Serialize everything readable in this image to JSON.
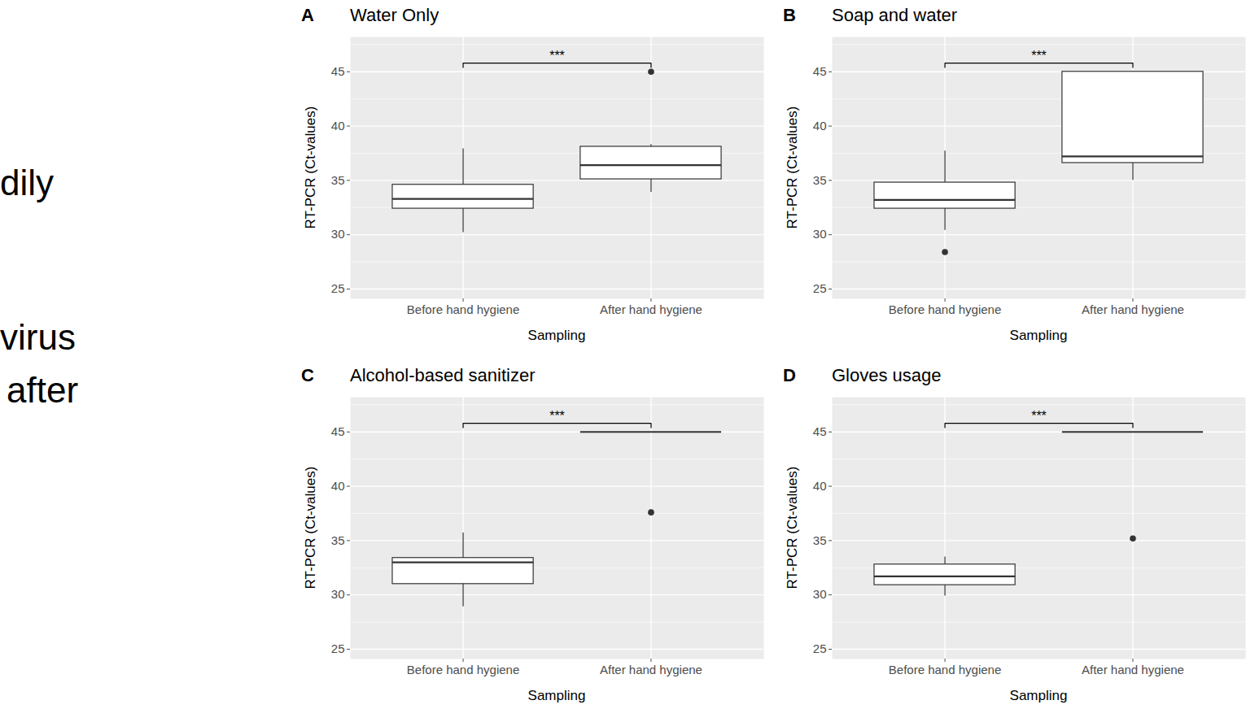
{
  "chart_data": [
    {
      "type": "box",
      "panel": "A",
      "title": "Water Only",
      "x_label": "Sampling",
      "y_label": "RT-PCR (Ct-values)",
      "categories": [
        "Before hand hygiene",
        "After hand hygiene"
      ],
      "boxes": [
        {
          "whisker_low": 30.2,
          "q1": 32.4,
          "median": 33.3,
          "q3": 34.6,
          "whisker_high": 37.9,
          "outliers": []
        },
        {
          "whisker_low": 33.9,
          "q1": 35.1,
          "median": 36.4,
          "q3": 38.1,
          "whisker_high": 38.3,
          "outliers": [
            45
          ]
        }
      ],
      "ylim": [
        24.1,
        48.2
      ],
      "yticks": [
        25,
        30,
        35,
        40,
        45
      ],
      "grid": true,
      "color": "#333333",
      "significance": {
        "from": 0,
        "to": 1,
        "y": 45.8,
        "tip": 45.4,
        "label": "***"
      }
    },
    {
      "type": "box",
      "panel": "B",
      "title": "Soap and water",
      "x_label": "Sampling",
      "y_label": "RT-PCR (Ct-values)",
      "categories": [
        "Before hand hygiene",
        "After hand hygiene"
      ],
      "boxes": [
        {
          "whisker_low": 30.4,
          "q1": 32.4,
          "median": 33.2,
          "q3": 34.8,
          "whisker_high": 37.7,
          "outliers": [
            28.4
          ]
        },
        {
          "whisker_low": 35.0,
          "q1": 36.6,
          "median": 37.2,
          "q3": 45,
          "whisker_high": 45,
          "outliers": []
        }
      ],
      "ylim": [
        24.1,
        48.2
      ],
      "yticks": [
        25,
        30,
        35,
        40,
        45
      ],
      "grid": true,
      "color": "#333333",
      "significance": {
        "from": 0,
        "to": 1,
        "y": 45.8,
        "tip": 45.4,
        "label": "***"
      }
    },
    {
      "type": "box",
      "panel": "C",
      "title": "Alcohol-based sanitizer",
      "x_label": "Sampling",
      "y_label": "RT-PCR (Ct-values)",
      "categories": [
        "Before hand hygiene",
        "After hand hygiene"
      ],
      "boxes": [
        {
          "whisker_low": 28.9,
          "q1": 31.0,
          "median": 33.0,
          "q3": 33.4,
          "whisker_high": 35.7,
          "outliers": []
        },
        {
          "whisker_low": 45,
          "q1": 45,
          "median": 45,
          "q3": 45,
          "whisker_high": 45,
          "outliers": [
            37.6
          ]
        }
      ],
      "ylim": [
        24.1,
        48.2
      ],
      "yticks": [
        25,
        30,
        35,
        40,
        45
      ],
      "grid": true,
      "color": "#333333",
      "significance": {
        "from": 0,
        "to": 1,
        "y": 45.8,
        "tip": 45.4,
        "label": "***"
      }
    },
    {
      "type": "box",
      "panel": "D",
      "title": "Gloves usage",
      "x_label": "Sampling",
      "y_label": "RT-PCR (Ct-values)",
      "categories": [
        "Before hand hygiene",
        "After hand hygiene"
      ],
      "boxes": [
        {
          "whisker_low": 29.9,
          "q1": 30.9,
          "median": 31.7,
          "q3": 32.8,
          "whisker_high": 33.5,
          "outliers": []
        },
        {
          "whisker_low": 45,
          "q1": 45,
          "median": 45,
          "q3": 45,
          "whisker_high": 45,
          "outliers": [
            35.2
          ]
        }
      ],
      "ylim": [
        24.1,
        48.2
      ],
      "yticks": [
        25,
        30,
        35,
        40,
        45
      ],
      "grid": true,
      "color": "#333333",
      "significance": {
        "from": 0,
        "to": 1,
        "y": 45.8,
        "tip": 45.4,
        "label": "***"
      }
    }
  ],
  "side_text": [
    "dily",
    "virus",
    "after"
  ]
}
